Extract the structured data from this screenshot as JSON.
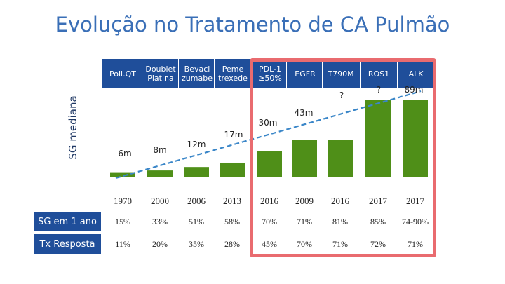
{
  "title": "Evolução no Tratamento de CA Pulmão",
  "colors": {
    "bar": "#4f8f18",
    "header": "#1f4e9a",
    "trend": "#3a86c8",
    "highlight": "#e96b6f",
    "title": "#3a6fb7"
  },
  "chart_data": {
    "type": "bar",
    "title": "Evolução no Tratamento de CA Pulmão",
    "ylabel": "SG mediana",
    "xlabel": "",
    "categories": [
      "Poli.QT",
      "Doublet Platina",
      "Bevaci zumabe",
      "Peme trexede",
      "PDL-1 ≥50%",
      "EGFR",
      "T790M",
      "ROS1",
      "ALK"
    ],
    "values": [
      6,
      8,
      12,
      17,
      30,
      43,
      43,
      89,
      89
    ],
    "value_labels": [
      "6m",
      "8m",
      "12m",
      "17m",
      "30m",
      "43m",
      "?",
      "?",
      "89m"
    ],
    "ylim": [
      0,
      100
    ],
    "trendline": true,
    "years": [
      "1970",
      "2000",
      "2006",
      "2013",
      "2016",
      "2009",
      "2016",
      "2017",
      "2017"
    ],
    "rows": [
      {
        "label": "SG em 1 ano",
        "values": [
          "15%",
          "33%",
          "51%",
          "58%",
          "70%",
          "71%",
          "81%",
          "85%",
          "74-90%"
        ]
      },
      {
        "label": "Tx Resposta",
        "values": [
          "11%",
          "20%",
          "35%",
          "28%",
          "45%",
          "70%",
          "71%",
          "72%",
          "71%"
        ]
      }
    ]
  }
}
